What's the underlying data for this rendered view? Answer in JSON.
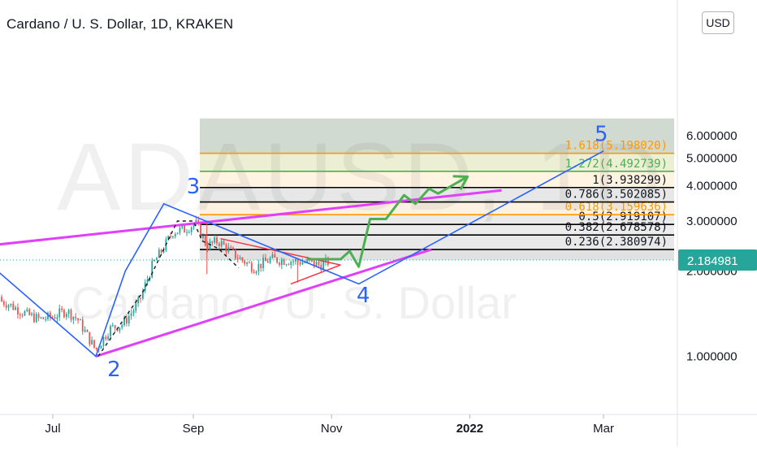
{
  "title": "Cardano / U. S. Dollar, 1D, KRAKEN",
  "currency_button": "USD",
  "watermark": {
    "symbol": "ADAUSD, 1D",
    "name": "Cardano / U. S. Dollar"
  },
  "colors": {
    "candle_up": "#26a69a",
    "candle_down": "#ef5350",
    "channel": "#e040fb",
    "wave": "#2962ff",
    "projection": "#4caf50",
    "triangle": "#f23645",
    "fib_orange": "#ff9800",
    "fib_green": "#4caf50",
    "fib_black": "#000000",
    "price_tag": "#26a69a"
  },
  "chart_data": {
    "type": "candlestick",
    "title": "Cardano / U. S. Dollar, 1D, KRAKEN",
    "y_axis": {
      "scale": "log",
      "ticks": [
        {
          "value": 1.0,
          "label": "1.000000"
        },
        {
          "value": 2.0,
          "label": "2.000000"
        },
        {
          "value": 3.0,
          "label": "3.000000"
        },
        {
          "value": 4.0,
          "label": "4.000000"
        },
        {
          "value": 5.0,
          "label": "5.000000"
        },
        {
          "value": 6.0,
          "label": "6.000000"
        }
      ]
    },
    "x_axis": {
      "ticks": [
        {
          "date": "2021-07-01",
          "label": "Jul"
        },
        {
          "date": "2021-09-01",
          "label": "Sep"
        },
        {
          "date": "2021-11-01",
          "label": "Nov"
        },
        {
          "date": "2022-01-01",
          "label": "2022"
        },
        {
          "date": "2022-03-01",
          "label": "Mar"
        }
      ]
    },
    "last_price": {
      "value": 2.184981,
      "label": "2.184981"
    },
    "fib_levels": [
      {
        "ratio": 0.236,
        "value": 2.380974,
        "label": "0.236(2.380974)",
        "color": "black"
      },
      {
        "ratio": 0.382,
        "value": 2.678578,
        "label": "0.382(2.678578)",
        "color": "black"
      },
      {
        "ratio": 0.5,
        "value": 2.919107,
        "label": "0.5(2.919107)",
        "color": "black"
      },
      {
        "ratio": 0.618,
        "value": 3.159636,
        "label": "0.618(3.159636)",
        "color": "orange"
      },
      {
        "ratio": 0.786,
        "value": 3.502085,
        "label": "0.786(3.502085)",
        "color": "black"
      },
      {
        "ratio": 1,
        "value": 3.938299,
        "label": "1(3.938299)",
        "color": "black"
      },
      {
        "ratio": 1.272,
        "value": 4.492739,
        "label": "1.272(4.492739)",
        "color": "green"
      },
      {
        "ratio": 1.618,
        "value": 5.19802,
        "label": "1.618(5.198020)",
        "color": "orange"
      }
    ],
    "wave_labels": [
      {
        "label": "2",
        "date": "2021-07-28",
        "price": 0.85
      },
      {
        "label": "3",
        "date": "2021-09-01",
        "price": 3.75
      },
      {
        "label": "4",
        "date": "2021-11-15",
        "price": 1.55
      },
      {
        "label": "5",
        "date": "2022-02-28",
        "price": 5.75
      }
    ],
    "wave_path": [
      {
        "date": "2021-06-05",
        "price": 2.05
      },
      {
        "date": "2021-07-20",
        "price": 1.0
      },
      {
        "date": "2021-08-02",
        "price": 2.0
      },
      {
        "date": "2021-08-19",
        "price": 3.45
      },
      {
        "date": "2021-11-13",
        "price": 1.8
      },
      {
        "date": "2022-03-01",
        "price": 5.3
      }
    ],
    "channel_upper": [
      {
        "date": "2021-06-01",
        "price": 2.45
      },
      {
        "date": "2022-01-15",
        "price": 3.85
      }
    ],
    "channel_lower": [
      {
        "date": "2021-07-20",
        "price": 1.0
      },
      {
        "date": "2021-12-15",
        "price": 2.38
      }
    ],
    "projection_path": [
      {
        "date": "2021-10-21",
        "price": 2.2
      },
      {
        "date": "2021-11-05",
        "price": 2.2
      },
      {
        "date": "2021-11-09",
        "price": 2.35
      },
      {
        "date": "2021-11-13",
        "price": 2.07
      },
      {
        "date": "2021-11-18",
        "price": 3.05
      },
      {
        "date": "2021-11-25",
        "price": 3.05
      },
      {
        "date": "2021-12-03",
        "price": 3.7
      },
      {
        "date": "2021-12-08",
        "price": 3.45
      },
      {
        "date": "2021-12-14",
        "price": 3.9
      },
      {
        "date": "2021-12-18",
        "price": 3.75
      },
      {
        "date": "2021-12-31",
        "price": 4.3
      }
    ],
    "triangle_upper": [
      {
        "date": "2021-09-13",
        "price": 2.6
      },
      {
        "date": "2021-11-05",
        "price": 2.1
      }
    ],
    "triangle_lower": [
      {
        "date": "2021-10-14",
        "price": 1.8
      },
      {
        "date": "2021-11-05",
        "price": 2.1
      }
    ],
    "dashed_path": [
      {
        "date": "2021-07-21",
        "price": 1.0
      },
      {
        "date": "2021-08-10",
        "price": 1.7
      },
      {
        "date": "2021-08-25",
        "price": 3.0
      },
      {
        "date": "2021-09-01",
        "price": 3.0
      },
      {
        "date": "2021-09-05",
        "price": 2.55
      },
      {
        "date": "2021-09-12",
        "price": 2.4
      },
      {
        "date": "2021-09-21",
        "price": 2.05
      }
    ],
    "candles_approx": [
      {
        "date": "2021-06-01",
        "close": 1.62
      },
      {
        "date": "2021-06-10",
        "close": 1.55
      },
      {
        "date": "2021-06-20",
        "close": 1.4
      },
      {
        "date": "2021-06-25",
        "close": 1.35
      },
      {
        "date": "2021-07-01",
        "close": 1.38
      },
      {
        "date": "2021-07-07",
        "close": 1.45
      },
      {
        "date": "2021-07-12",
        "close": 1.35
      },
      {
        "date": "2021-07-20",
        "close": 1.05
      },
      {
        "date": "2021-07-26",
        "close": 1.25
      },
      {
        "date": "2021-08-01",
        "close": 1.3
      },
      {
        "date": "2021-08-08",
        "close": 1.55
      },
      {
        "date": "2021-08-14",
        "close": 2.1
      },
      {
        "date": "2021-08-20",
        "close": 2.5
      },
      {
        "date": "2021-08-23",
        "close": 2.75
      },
      {
        "date": "2021-08-28",
        "close": 2.8
      },
      {
        "date": "2021-09-02",
        "close": 2.95
      },
      {
        "date": "2021-09-07",
        "close": 2.45
      },
      {
        "date": "2021-09-12",
        "close": 2.55
      },
      {
        "date": "2021-09-20",
        "close": 2.25
      },
      {
        "date": "2021-09-28",
        "close": 2.05
      },
      {
        "date": "2021-10-05",
        "close": 2.2
      },
      {
        "date": "2021-10-12",
        "close": 2.18
      },
      {
        "date": "2021-10-20",
        "close": 2.15
      },
      {
        "date": "2021-10-27",
        "close": 2.1
      },
      {
        "date": "2021-11-01",
        "close": 2.18
      }
    ]
  }
}
